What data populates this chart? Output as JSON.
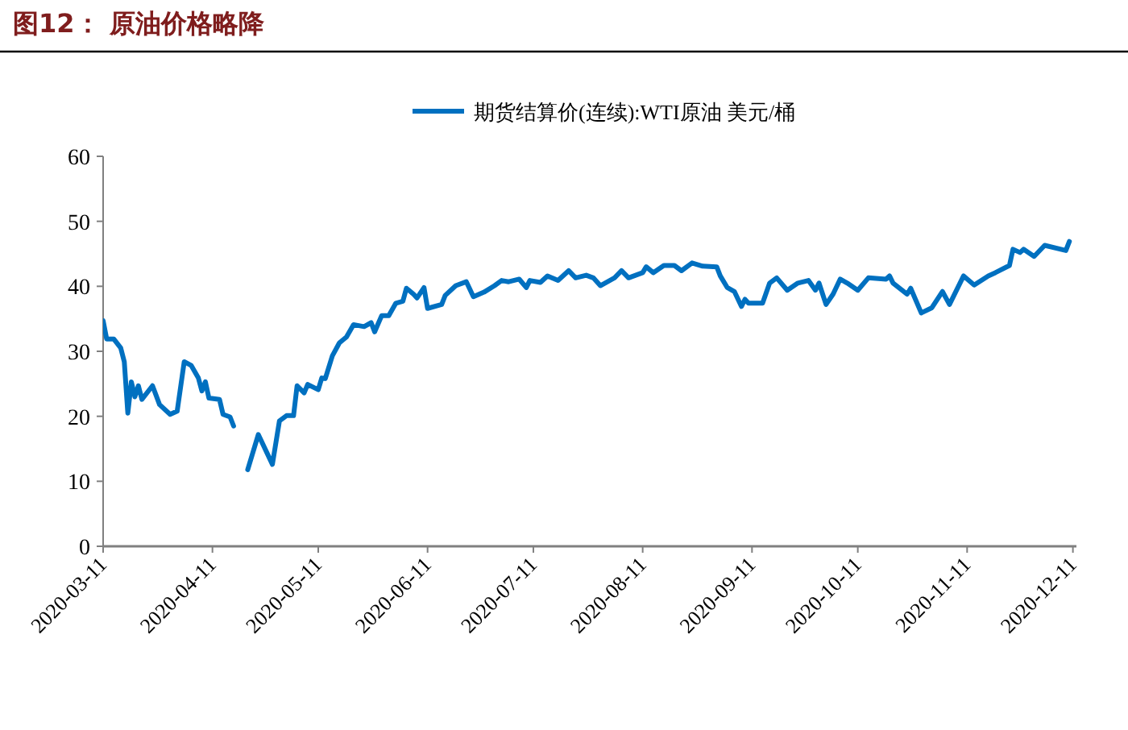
{
  "chart_data": {
    "type": "line",
    "title": "图12： 原油价格略降",
    "legend": "top",
    "x": [
      "2020-03-11",
      "2020-03-12",
      "2020-03-14",
      "2020-03-16",
      "2020-03-17",
      "2020-03-18",
      "2020-03-19",
      "2020-03-20",
      "2020-03-21",
      "2020-03-22",
      "2020-03-25",
      "2020-03-27",
      "2020-03-30",
      "2020-04-01",
      "2020-04-03",
      "2020-04-05",
      "2020-04-07",
      "2020-04-08",
      "2020-04-09",
      "2020-04-10",
      "2020-04-13",
      "2020-04-14",
      "2020-04-16",
      "2020-04-17",
      "2020-04-20",
      "2020-04-21",
      "2020-04-24",
      "2020-04-28",
      "2020-04-30",
      "2020-05-02",
      "2020-05-04",
      "2020-05-05",
      "2020-05-07",
      "2020-05-08",
      "2020-05-11",
      "2020-05-12",
      "2020-05-13",
      "2020-05-15",
      "2020-05-17",
      "2020-05-19",
      "2020-05-21",
      "2020-05-24",
      "2020-05-26",
      "2020-05-27",
      "2020-05-29",
      "2020-05-31",
      "2020-06-02",
      "2020-06-04",
      "2020-06-05",
      "2020-06-07",
      "2020-06-08",
      "2020-06-10",
      "2020-06-11",
      "2020-06-15",
      "2020-06-16",
      "2020-06-19",
      "2020-06-22",
      "2020-06-24",
      "2020-06-27",
      "2020-06-30",
      "2020-07-02",
      "2020-07-04",
      "2020-07-07",
      "2020-07-09",
      "2020-07-10",
      "2020-07-13",
      "2020-07-15",
      "2020-07-18",
      "2020-07-21",
      "2020-07-23",
      "2020-07-26",
      "2020-07-28",
      "2020-07-30",
      "2020-08-03",
      "2020-08-05",
      "2020-08-07",
      "2020-08-11",
      "2020-08-12",
      "2020-08-14",
      "2020-08-17",
      "2020-08-20",
      "2020-08-22",
      "2020-08-25",
      "2020-08-28",
      "2020-09-01",
      "2020-09-02",
      "2020-09-04",
      "2020-09-06",
      "2020-09-08",
      "2020-09-09",
      "2020-09-10",
      "2020-09-14",
      "2020-09-16",
      "2020-09-18",
      "2020-09-21",
      "2020-09-24",
      "2020-09-27",
      "2020-09-29",
      "2020-09-30",
      "2020-10-02",
      "2020-10-04",
      "2020-10-06",
      "2020-10-08",
      "2020-10-11",
      "2020-10-14",
      "2020-10-19",
      "2020-10-20",
      "2020-10-21",
      "2020-10-25",
      "2020-10-26",
      "2020-10-29",
      "2020-11-01",
      "2020-11-04",
      "2020-11-06",
      "2020-11-10",
      "2020-11-13",
      "2020-11-17",
      "2020-11-19",
      "2020-11-23",
      "2020-11-24",
      "2020-11-26",
      "2020-11-27",
      "2020-11-30",
      "2020-12-03",
      "2020-12-09",
      "2020-12-10"
    ],
    "series": [
      {
        "name": "期货结算价(连续):WTI原油 美元/桶",
        "color": "#0070c0",
        "values": [
          34.7,
          31.9,
          31.9,
          30.5,
          28.4,
          20.5,
          25.3,
          23.0,
          24.7,
          22.6,
          24.7,
          21.8,
          20.3,
          20.8,
          28.4,
          27.8,
          25.9,
          23.9,
          25.3,
          22.8,
          22.6,
          20.3,
          19.9,
          18.5,
          null,
          11.8,
          17.2,
          12.6,
          19.3,
          20.1,
          20.1,
          24.7,
          23.6,
          24.9,
          24.1,
          25.9,
          25.8,
          29.3,
          31.3,
          32.2,
          34.1,
          33.8,
          34.4,
          33.0,
          35.5,
          35.5,
          37.4,
          37.7,
          39.7,
          38.8,
          38.2,
          39.8,
          36.6,
          37.2,
          38.6,
          40.1,
          40.7,
          38.4,
          39.1,
          40.1,
          40.9,
          40.7,
          41.1,
          39.8,
          40.9,
          40.6,
          41.6,
          40.9,
          42.4,
          41.3,
          41.7,
          41.3,
          40.1,
          41.3,
          42.4,
          41.3,
          42.1,
          43.0,
          42.1,
          43.2,
          43.2,
          42.4,
          43.6,
          43.1,
          43.0,
          41.6,
          39.8,
          39.2,
          36.9,
          38.0,
          37.4,
          37.4,
          40.5,
          41.3,
          39.4,
          40.5,
          40.9,
          39.4,
          40.5,
          37.2,
          38.8,
          41.1,
          40.5,
          39.4,
          41.3,
          41.1,
          41.6,
          40.5,
          38.8,
          39.7,
          35.9,
          36.7,
          39.2,
          37.2,
          41.6,
          40.2,
          41.6,
          42.1,
          43.2,
          45.7,
          45.2,
          45.7,
          44.6,
          46.3,
          45.5,
          46.9
        ]
      }
    ],
    "xlim": [
      "2020-03-11",
      "2020-12-12"
    ],
    "xticks": [
      "2020-03-11",
      "2020-04-11",
      "2020-05-11",
      "2020-06-11",
      "2020-07-11",
      "2020-08-11",
      "2020-09-11",
      "2020-10-11",
      "2020-11-11",
      "2020-12-11"
    ],
    "ylim": [
      0,
      60
    ],
    "yticks": [
      0,
      10,
      20,
      30,
      40,
      50,
      60
    ],
    "grid": false
  }
}
